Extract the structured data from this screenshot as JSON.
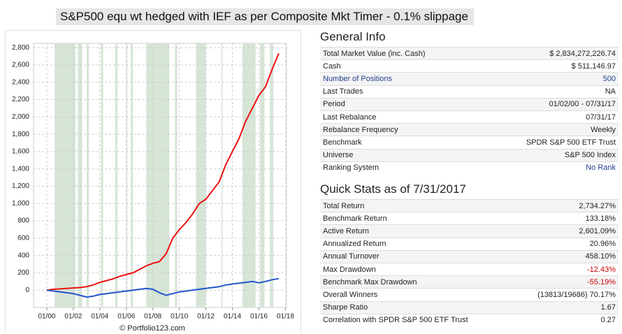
{
  "title": "S&P500 equ wt hedged with IEF as per Composite Mkt Timer - 0.1% slippage",
  "chart_data": {
    "type": "line",
    "footer": "© Portfolio123.com",
    "x": [
      "2000-01",
      "2000-07",
      "2001-01",
      "2001-07",
      "2002-01",
      "2002-07",
      "2003-01",
      "2003-07",
      "2004-01",
      "2004-07",
      "2005-01",
      "2005-07",
      "2006-01",
      "2006-07",
      "2007-01",
      "2007-07",
      "2008-01",
      "2008-07",
      "2009-01",
      "2009-07",
      "2010-01",
      "2010-07",
      "2011-01",
      "2011-07",
      "2012-01",
      "2012-07",
      "2013-01",
      "2013-07",
      "2014-01",
      "2014-07",
      "2015-01",
      "2015-07",
      "2016-01",
      "2016-07",
      "2017-01",
      "2017-07"
    ],
    "series": [
      {
        "color": "#ee1111",
        "values": [
          0,
          10,
          15,
          20,
          25,
          30,
          40,
          60,
          90,
          110,
          130,
          160,
          180,
          200,
          240,
          280,
          310,
          330,
          420,
          600,
          700,
          780,
          880,
          1000,
          1050,
          1150,
          1250,
          1450,
          1600,
          1750,
          1950,
          2100,
          2250,
          2350,
          2550,
          2734
        ]
      },
      {
        "color": "#2255cc",
        "values": [
          0,
          -10,
          -20,
          -30,
          -40,
          -60,
          -80,
          -70,
          -50,
          -40,
          -30,
          -20,
          -10,
          0,
          10,
          20,
          10,
          -30,
          -60,
          -40,
          -20,
          -10,
          0,
          10,
          20,
          30,
          40,
          60,
          70,
          80,
          90,
          100,
          85,
          100,
          120,
          133
        ]
      }
    ],
    "shaded_periods": [
      [
        "2000-08",
        "2002-03"
      ],
      [
        "2002-05",
        "2002-09"
      ],
      [
        "2003-01",
        "2003-03"
      ],
      [
        "2004-02",
        "2004-04"
      ],
      [
        "2005-03",
        "2005-05"
      ],
      [
        "2006-01",
        "2006-02"
      ],
      [
        "2006-05",
        "2006-07"
      ],
      [
        "2007-07",
        "2009-04"
      ],
      [
        "2009-09",
        "2009-11"
      ],
      [
        "2011-04",
        "2012-01"
      ],
      [
        "2013-03",
        "2013-04"
      ],
      [
        "2014-10",
        "2015-10"
      ],
      [
        "2016-02",
        "2016-06"
      ],
      [
        "2016-11",
        "2017-02"
      ]
    ],
    "shade_color": "#d7e5d7",
    "grid": true,
    "xlim": [
      "1999-01",
      "2018-02"
    ],
    "xticks": [
      {
        "value": "2000-01",
        "label": "01/00"
      },
      {
        "value": "2002-01",
        "label": "01/02"
      },
      {
        "value": "2004-01",
        "label": "01/04"
      },
      {
        "value": "2006-01",
        "label": "01/06"
      },
      {
        "value": "2008-01",
        "label": "01/08"
      },
      {
        "value": "2010-01",
        "label": "01/10"
      },
      {
        "value": "2012-01",
        "label": "01/12"
      },
      {
        "value": "2014-01",
        "label": "01/14"
      },
      {
        "value": "2016-01",
        "label": "01/16"
      },
      {
        "value": "2018-01",
        "label": "01/18"
      }
    ],
    "ylim": [
      -200,
      2850
    ],
    "yticks": [
      0,
      200,
      400,
      600,
      800,
      {
        "value": 1000,
        "label": "1,000"
      },
      {
        "value": 1200,
        "label": "1,200"
      },
      {
        "value": 1400,
        "label": "1,400"
      },
      {
        "value": 1600,
        "label": "1,600"
      },
      {
        "value": 1800,
        "label": "1,800"
      },
      {
        "value": 2000,
        "label": "2,000"
      },
      {
        "value": 2200,
        "label": "2,200"
      },
      {
        "value": 2400,
        "label": "2,400"
      },
      {
        "value": 2600,
        "label": "2,600"
      },
      {
        "value": 2800,
        "label": "2,800"
      }
    ]
  },
  "general_info": {
    "heading": "General Info",
    "rows": [
      [
        "Total Market Value (inc. Cash)",
        "$ 2,834,272,226.74"
      ],
      [
        "Cash",
        "$ 511,146.97"
      ],
      [
        "Number of Positions",
        "500"
      ],
      [
        "Last Trades",
        "NA"
      ],
      [
        "Period",
        "01/02/00 - 07/31/17"
      ],
      [
        "Last Rebalance",
        "07/31/17"
      ],
      [
        "Rebalance Frequency",
        "Weekly"
      ],
      [
        "Benchmark",
        "SPDR S&P 500 ETF Trust"
      ],
      [
        "Universe",
        "S&P 500 Index"
      ],
      [
        "Ranking System",
        "No Rank"
      ]
    ]
  },
  "quick_stats": {
    "heading": "Quick Stats as of 7/31/2017",
    "rows": [
      [
        "Total Return",
        "2,734.27%"
      ],
      [
        "Benchmark Return",
        "133.18%"
      ],
      [
        "Active Return",
        "2,601.09%"
      ],
      [
        "Annualized Return",
        "20.96%"
      ],
      [
        "Annual Turnover",
        "458.10%"
      ],
      [
        "Max Drawdown",
        "-12.43%"
      ],
      [
        "Benchmark Max Drawdown",
        "-55.19%"
      ],
      [
        "Overall Winners",
        "(13813/19686) 70.17%"
      ],
      [
        "Sharpe Ratio",
        "1.67"
      ],
      [
        "Correlation with SPDR S&P 500 ETF Trust",
        "0.27"
      ]
    ]
  }
}
